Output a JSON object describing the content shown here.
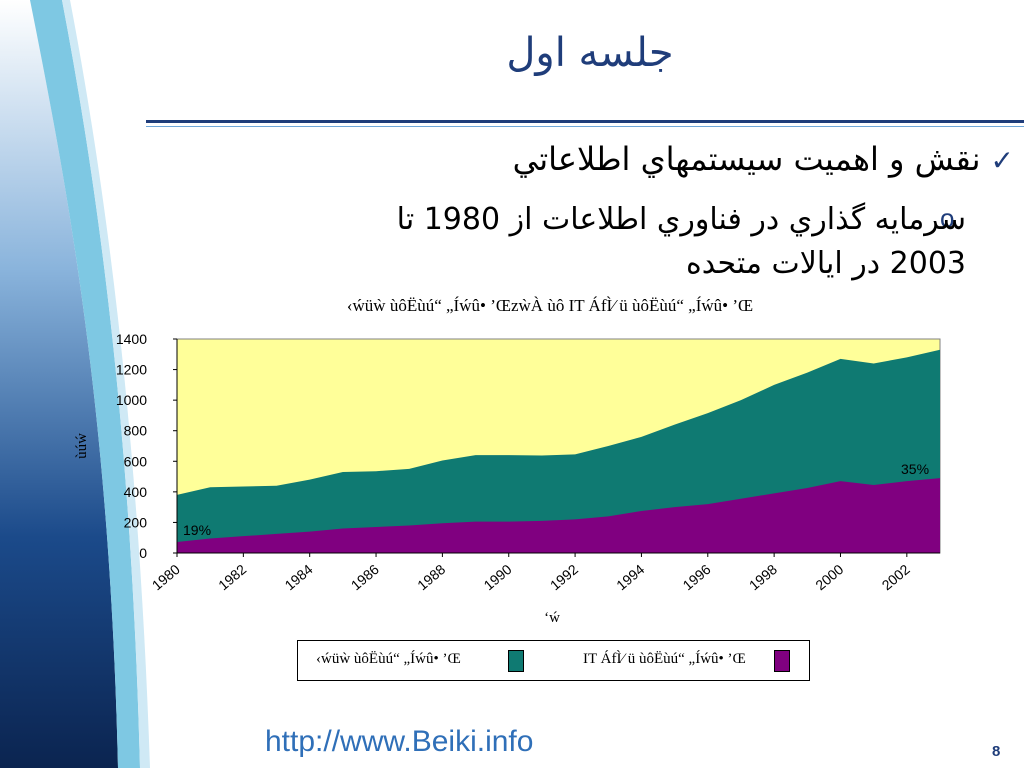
{
  "slide": {
    "title": "جلسه اول",
    "bullet_main": "نقش و اهميت سيستمهاي اطلاعاتي",
    "bullet_sub_line1": "سرمايه گذاري در فناوري اطلاعات از 1980 تا",
    "bullet_sub_line2": "2003 در ايالات متحده",
    "sub_bullet_mark": "o",
    "footer_url": "http://www.Beiki.info",
    "page_number": "8",
    "colors": {
      "title_blue": "#1f3d7a",
      "accent_blue": "#6fa7d8",
      "chart_bg": "#ffff99",
      "teal_area": "#0f7a72",
      "purple_area": "#800080"
    }
  },
  "chart_data": {
    "type": "area",
    "title": "‹ẃüẁ ùôËùú“ „Íẃû• ’ŒzẁÀ ùô IT ÁfÌ⁄ ü ùôËùú“ „Íẃû• ’Œ",
    "ylabel": "ùúẃ",
    "xlabel": "‘ẃ",
    "x": [
      1980,
      1981,
      1982,
      1983,
      1984,
      1985,
      1986,
      1987,
      1988,
      1989,
      1990,
      1991,
      1992,
      1993,
      1994,
      1995,
      1996,
      1997,
      1998,
      1999,
      2000,
      2001,
      2002,
      2003
    ],
    "x_tick_labels": [
      "1980",
      "1982",
      "1984",
      "1986",
      "1988",
      "1990",
      "1992",
      "1994",
      "1996",
      "1998",
      "2000",
      "2002"
    ],
    "ylim": [
      0,
      1400
    ],
    "y_ticks": [
      "0",
      "200",
      "400",
      "600",
      "800",
      "1000",
      "1200",
      "1400"
    ],
    "series": [
      {
        "name": "‹ẃüẁ ùôËùú“ „Íẃû• ’Œ",
        "color": "#0f7a72",
        "values": [
          380,
          430,
          435,
          440,
          480,
          530,
          535,
          550,
          605,
          640,
          640,
          638,
          645,
          700,
          760,
          840,
          915,
          1000,
          1100,
          1180,
          1270,
          1240,
          1280,
          1330
        ]
      },
      {
        "name": "IT ÁfÌ⁄ ü ùôËùú“ „Íẃû• ’Œ",
        "color": "#800080",
        "values": [
          72,
          95,
          110,
          125,
          140,
          160,
          170,
          180,
          195,
          205,
          205,
          210,
          220,
          240,
          275,
          300,
          320,
          355,
          390,
          425,
          470,
          445,
          470,
          490
        ]
      }
    ],
    "annotations": [
      "19%",
      "35%"
    ],
    "grid": false,
    "legend": "bottom"
  }
}
